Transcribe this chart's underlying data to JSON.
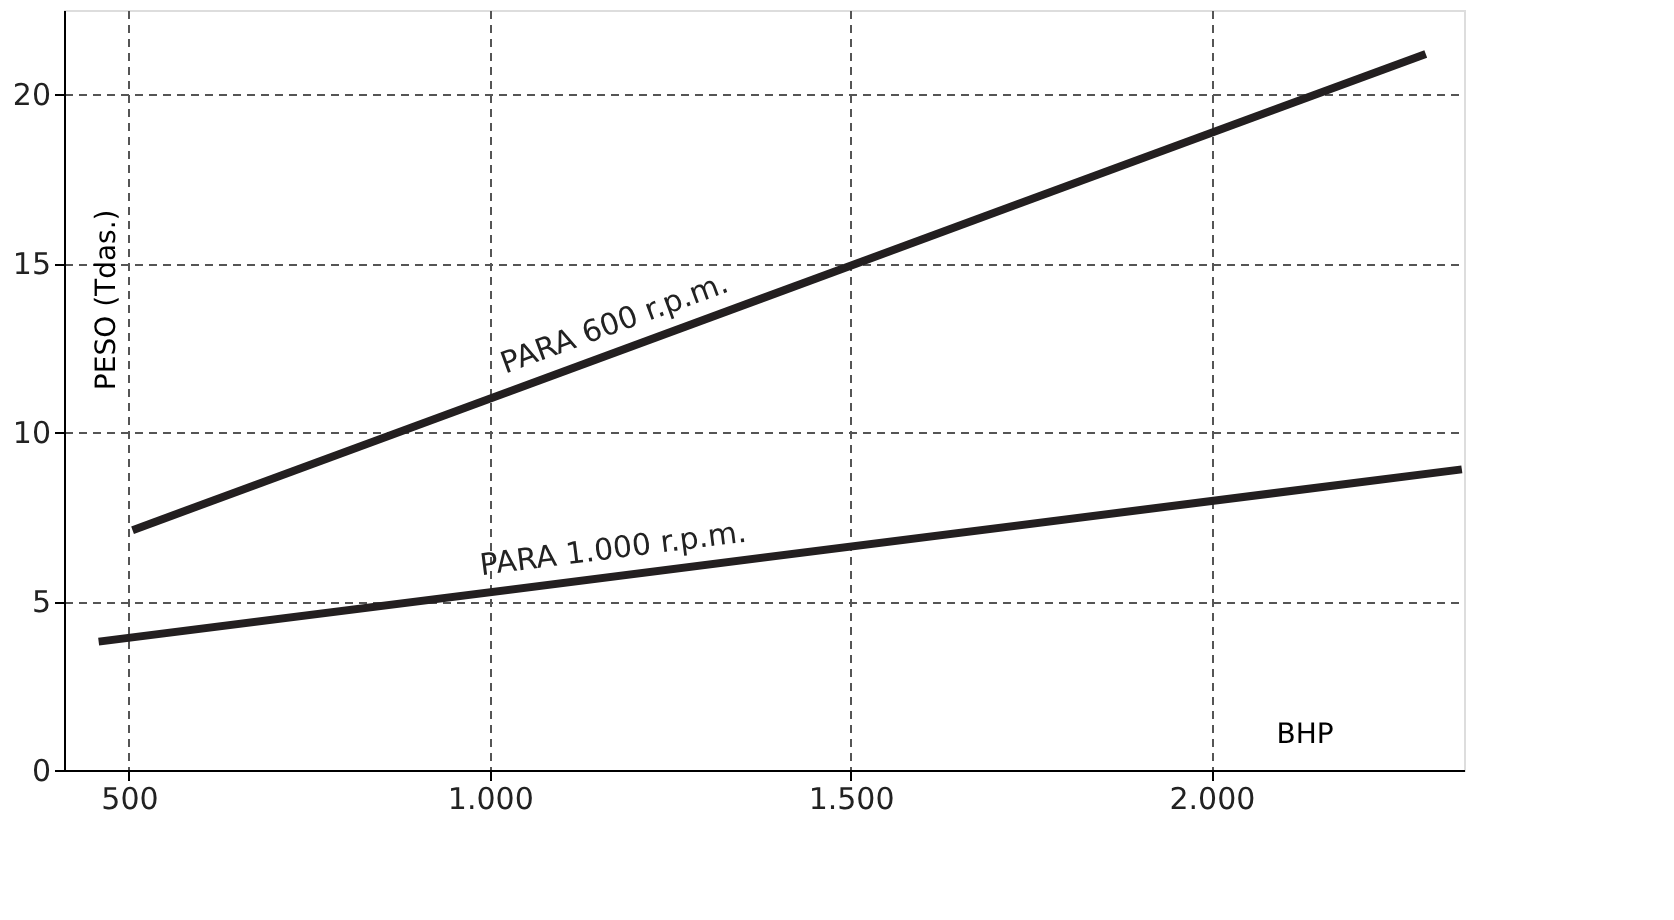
{
  "chart_data": {
    "type": "line",
    "xlabel": "BHP",
    "ylabel": "PESO (Tdas.)",
    "series": [
      {
        "name": "PARA 600 r.p.m.",
        "color": "#231f20",
        "x": [
          505,
          2297
        ],
        "values": [
          7.1,
          21.2
        ]
      },
      {
        "name": "PARA 1.000 r.p.m.",
        "color": "#231f20",
        "x": [
          458,
          2347
        ],
        "values": [
          3.8,
          8.9
        ]
      }
    ],
    "xlim": [
      410,
      2350
    ],
    "ylim": [
      0,
      22.5
    ],
    "xticks": [
      500,
      {
        "value": 1000,
        "label": "1.000"
      },
      {
        "value": 1500,
        "label": "1.500"
      },
      {
        "value": 2000,
        "label": "2.000"
      }
    ],
    "yticks": [
      0,
      5,
      10,
      15,
      20
    ],
    "grid": true,
    "marker": "none",
    "line_style": "solid"
  }
}
